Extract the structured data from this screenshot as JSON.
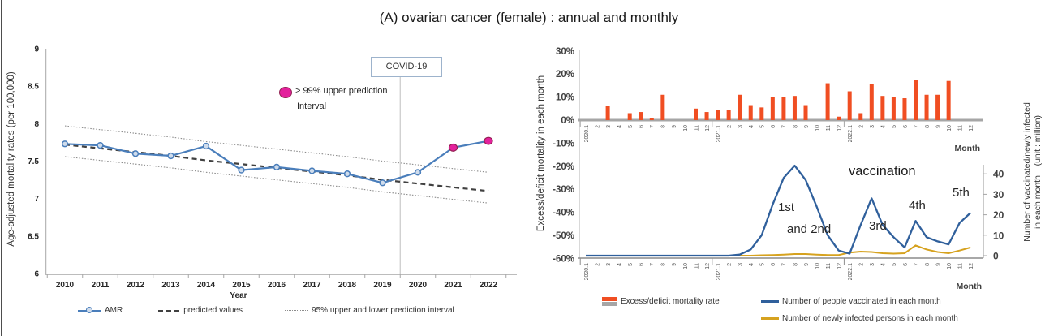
{
  "figure": {
    "title": "(A) ovarian cancer (female) : annual and monthly"
  },
  "colors": {
    "amr_blue": "#4a7ebb",
    "amr_marker_fill": "#cfdcec",
    "magenta": "#e3219c",
    "magenta_stroke": "#922052",
    "predicted_dark": "#404040",
    "interval_gray": "#8c8c8c",
    "bar_orange": "#f04e22",
    "vaccinated_blue": "#30609c",
    "infected_yellow": "#d6a21f",
    "axis_gray": "#a6a6a6",
    "light_axis": "#c9c9c9"
  },
  "chart_data": [
    {
      "id": "annual-amr",
      "type": "line",
      "ylabel": "Age-adjusted mortality rates (per 100,000)",
      "xlabel": "Year",
      "ylim": [
        6,
        9
      ],
      "yticks": [
        9,
        8.5,
        8,
        7.5,
        7,
        6.5,
        6
      ],
      "categories": [
        2010,
        2011,
        2012,
        2013,
        2014,
        2015,
        2016,
        2017,
        2018,
        2019,
        2020,
        2021,
        2022
      ],
      "series": [
        {
          "name": "AMR",
          "values": [
            7.73,
            7.71,
            7.6,
            7.57,
            7.7,
            7.38,
            7.42,
            7.37,
            7.33,
            7.21,
            7.35,
            7.68,
            7.77
          ]
        },
        {
          "name": "predicted values",
          "values": [
            7.72,
            7.67,
            7.62,
            7.57,
            7.51,
            7.46,
            7.41,
            7.36,
            7.31,
            7.25,
            7.2,
            7.15,
            7.1
          ]
        },
        {
          "name": "95% upper prediction interval",
          "values": [
            7.97,
            7.92,
            7.87,
            7.82,
            7.76,
            7.71,
            7.66,
            7.61,
            7.56,
            7.5,
            7.45,
            7.4,
            7.35
          ]
        },
        {
          "name": "95% lower prediction interval",
          "values": [
            7.56,
            7.51,
            7.46,
            7.41,
            7.35,
            7.3,
            7.25,
            7.2,
            7.15,
            7.09,
            7.04,
            6.99,
            6.94
          ]
        }
      ],
      "exceed_points": {
        "years": [
          2021,
          2022
        ]
      },
      "exceed_legend": {
        "line1": "> 99% upper prediction",
        "line2": "Interval"
      },
      "annotations": {
        "covid": "COVID-19",
        "covid_x": 2019.5
      },
      "legend": [
        "AMR",
        "predicted values",
        "95% upper and lower prediction interval"
      ],
      "grid": false,
      "legend_position": "bottom"
    },
    {
      "id": "monthly-excess-vaccination",
      "type": "bar+line",
      "ylabel_left": "Excess/deficit mortality in each month",
      "ylabel_right_line1": "Number of vaccinated/newly infected",
      "ylabel_right_line2": "in each month    (unit : million)",
      "xlabel": "Month",
      "ylim_left_pct": [
        -60,
        30
      ],
      "yticks_left_pct": [
        30,
        20,
        10,
        0,
        -10,
        -20,
        -30,
        -40,
        -50,
        -60
      ],
      "ylim_right_million": [
        0,
        45
      ],
      "yticks_right_million": [
        40,
        30,
        20,
        10,
        0
      ],
      "months": [
        "2020.1",
        "2",
        "3",
        "4",
        "5",
        "6",
        "7",
        "8",
        "9",
        "10",
        "11",
        "12",
        "2021.1",
        "2",
        "3",
        "4",
        "5",
        "6",
        "7",
        "8",
        "9",
        "10",
        "11",
        "12",
        "2022.1",
        "2",
        "3",
        "4",
        "5",
        "6",
        "7",
        "8",
        "9",
        "10",
        "11",
        "12"
      ],
      "series": [
        {
          "name": "Excess/deficit mortality rate",
          "type": "bar",
          "unit": "%",
          "values": [
            0,
            0,
            6,
            0,
            3,
            3.5,
            1,
            11,
            0,
            0,
            5,
            3.5,
            4.5,
            4.5,
            11,
            6.5,
            5.5,
            10,
            10,
            10.5,
            6.5,
            0,
            16,
            1.5,
            12.5,
            3,
            15.5,
            10.5,
            10,
            9.5,
            17.5,
            11,
            11,
            17,
            0,
            0
          ]
        },
        {
          "name": "Number of people vaccinated in each month",
          "type": "line",
          "unit": "million",
          "values": [
            0,
            0,
            0,
            0,
            0,
            0,
            0,
            0,
            0,
            0,
            0,
            0,
            0,
            0,
            0.5,
            3,
            10,
            25,
            38,
            44,
            37,
            24,
            10,
            2.5,
            1,
            15,
            28,
            15,
            9,
            4,
            17,
            9,
            7,
            5.5,
            16,
            21
          ]
        },
        {
          "name": "Number of newly infected persons in each month",
          "type": "line",
          "unit": "million",
          "values": [
            0,
            0,
            0,
            0,
            0,
            0,
            0,
            0,
            0,
            0,
            0,
            0,
            0,
            0,
            0,
            0,
            0.2,
            0.3,
            0.5,
            0.8,
            0.8,
            0.5,
            0.3,
            0.3,
            1.5,
            2,
            1.8,
            1.2,
            1,
            1.2,
            5,
            3,
            1.8,
            1.2,
            2.5,
            4
          ]
        }
      ],
      "annotations": {
        "vaccination": "vaccination",
        "wave1": "1st",
        "wave1b": "and 2nd",
        "wave3": "3rd",
        "wave4": "4th",
        "wave5": "5th"
      },
      "grid": false,
      "legend_position": "bottom"
    }
  ]
}
